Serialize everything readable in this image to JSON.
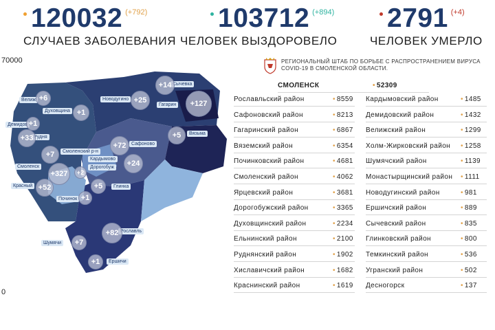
{
  "stats": [
    {
      "value": "120032",
      "delta": "(+792)",
      "caption": "СЛУЧАЕВ ЗАБОЛЕВАНИЯ",
      "dot_color": "#f0a030",
      "delta_color": "#e0a14a"
    },
    {
      "value": "103712",
      "delta": "(+894)",
      "caption": "ЧЕЛОВЕК ВЫЗДОРОВЕЛО",
      "dot_color": "#2fb3a0",
      "delta_color": "#2fb3a0"
    },
    {
      "value": "2791",
      "delta": "(+4)",
      "caption": "ЧЕЛОВЕК УМЕРЛО",
      "dot_color": "#c0392b",
      "delta_color": "#c0392b"
    }
  ],
  "scale": {
    "top": "70000",
    "bottom": "0"
  },
  "headquarters": {
    "text": "Региональный штаб по борьбе с распространением вируса COVID-19 в Смоленской области.",
    "logo": "smolensk-coat-of-arms"
  },
  "map": {
    "labels": [
      "Велиж",
      "Духовщина",
      "Демидов",
      "Рудня",
      "Смоленский р-н",
      "Смоленск",
      "Красный",
      "Починок",
      "Шумячи",
      "Ершичи",
      "Рославль",
      "Кардымово",
      "Дорогобуж",
      "Глинка",
      "Сафоново",
      "Новодугино",
      "Гагарин",
      "Сычевка",
      "Вязьма"
    ],
    "bubbles": [
      "+6",
      "+1",
      "+1",
      "+33",
      "+7",
      "+327",
      "+52",
      "+2",
      "+5",
      "+1",
      "+7",
      "+1",
      "+82",
      "+72",
      "+24",
      "+25",
      "+14",
      "+127",
      "+5"
    ]
  },
  "table": {
    "smolensk": {
      "name": "СМОЛЕНСК",
      "value": "52309"
    },
    "left": [
      {
        "name": "Рославльский район",
        "value": "8559"
      },
      {
        "name": "Сафоновский район",
        "value": "8213"
      },
      {
        "name": "Гагаринский район",
        "value": "6867"
      },
      {
        "name": "Вяземский район",
        "value": "6354"
      },
      {
        "name": "Починковский район",
        "value": "4681"
      },
      {
        "name": "Смоленский район",
        "value": "4062"
      },
      {
        "name": "Ярцевский район",
        "value": "3681"
      },
      {
        "name": "Дорогобужский район",
        "value": "3365"
      },
      {
        "name": "Духовщинский район",
        "value": "2234"
      },
      {
        "name": "Ельнинский район",
        "value": "2100"
      },
      {
        "name": "Руднянский район",
        "value": "1902"
      },
      {
        "name": "Хиславичский район",
        "value": "1682"
      },
      {
        "name": "Краснинский район",
        "value": "1619"
      }
    ],
    "right": [
      {
        "name": "Кардымовский район",
        "value": "1485"
      },
      {
        "name": "Демидовский район",
        "value": "1432"
      },
      {
        "name": "Велижский район",
        "value": "1299"
      },
      {
        "name": "Холм-Жирковский район",
        "value": "1258"
      },
      {
        "name": "Шумячский район",
        "value": "1139"
      },
      {
        "name": "Монастырщинский район",
        "value": "1111"
      },
      {
        "name": "Новодугинский район",
        "value": "981"
      },
      {
        "name": "Ершичский район",
        "value": "889"
      },
      {
        "name": "Сычевский район",
        "value": "835"
      },
      {
        "name": "Глинковский район",
        "value": "800"
      },
      {
        "name": "Темкинский район",
        "value": "536"
      },
      {
        "name": "Угранский район",
        "value": "502"
      },
      {
        "name": "Десногорск",
        "value": "137"
      }
    ]
  }
}
